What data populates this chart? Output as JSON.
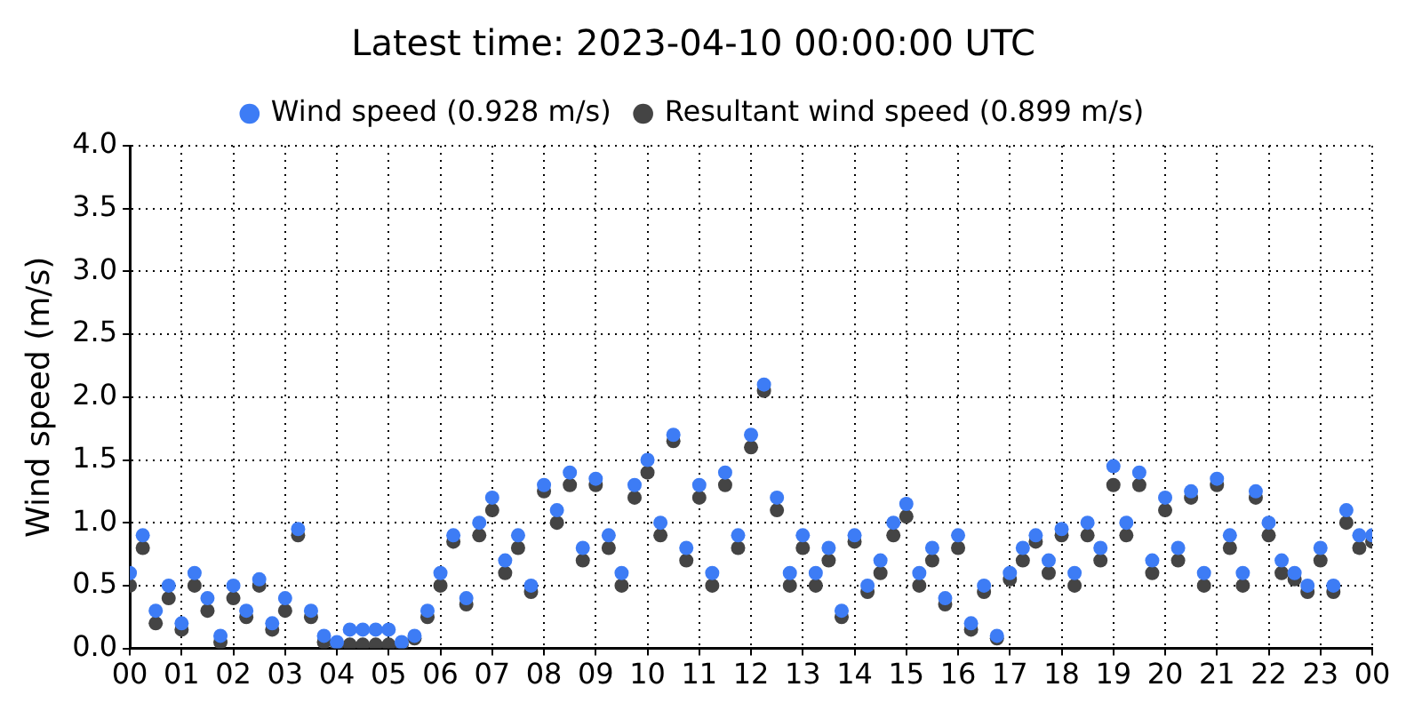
{
  "chart_data": {
    "type": "scatter",
    "title": "Latest time: 2023-04-10 00:00:00 UTC",
    "ylabel": "Wind speed (m/s)",
    "x": [
      0,
      0.25,
      0.5,
      0.75,
      1,
      1.25,
      1.5,
      1.75,
      2,
      2.25,
      2.5,
      2.75,
      3,
      3.25,
      3.5,
      3.75,
      4,
      4.25,
      4.5,
      4.75,
      5,
      5.25,
      5.5,
      5.75,
      6,
      6.25,
      6.5,
      6.75,
      7,
      7.25,
      7.5,
      7.75,
      8,
      8.25,
      8.5,
      8.75,
      9,
      9.25,
      9.5,
      9.75,
      10,
      10.25,
      10.5,
      10.75,
      11,
      11.25,
      11.5,
      11.75,
      12,
      12.25,
      12.5,
      12.75,
      13,
      13.25,
      13.5,
      13.75,
      14,
      14.25,
      14.5,
      14.75,
      15,
      15.25,
      15.5,
      15.75,
      16,
      16.25,
      16.5,
      16.75,
      17,
      17.25,
      17.5,
      17.75,
      18,
      18.25,
      18.5,
      18.75,
      19,
      19.25,
      19.5,
      19.75,
      20,
      20.25,
      20.5,
      20.75,
      21,
      21.25,
      21.5,
      21.75,
      22,
      22.25,
      22.5,
      22.75,
      23,
      23.25,
      23.5,
      23.75,
      24
    ],
    "series": [
      {
        "name": "Wind speed (0.928 m/s)",
        "color": "#3d7cf5",
        "values": [
          0.6,
          0.9,
          0.3,
          0.5,
          0.2,
          0.6,
          0.4,
          0.1,
          0.5,
          0.3,
          0.55,
          0.2,
          0.4,
          0.95,
          0.3,
          0.1,
          0.05,
          0.15,
          0.15,
          0.15,
          0.15,
          0.05,
          0.1,
          0.3,
          0.6,
          0.9,
          0.4,
          1.0,
          1.2,
          0.7,
          0.9,
          0.5,
          1.3,
          1.1,
          1.4,
          0.8,
          1.35,
          0.9,
          0.6,
          1.3,
          1.5,
          1.0,
          1.7,
          0.8,
          1.3,
          0.6,
          1.4,
          0.9,
          1.7,
          2.1,
          1.2,
          0.6,
          0.9,
          0.6,
          0.8,
          0.3,
          0.9,
          0.5,
          0.7,
          1.0,
          1.15,
          0.6,
          0.8,
          0.4,
          0.9,
          0.2,
          0.5,
          0.1,
          0.6,
          0.8,
          0.9,
          0.7,
          0.95,
          0.6,
          1.0,
          0.8,
          1.45,
          1.0,
          1.4,
          0.7,
          1.2,
          0.8,
          1.25,
          0.6,
          1.35,
          0.9,
          0.6,
          1.25,
          1.0,
          0.7,
          0.6,
          0.5,
          0.8,
          0.5,
          1.1,
          0.9,
          0.9
        ]
      },
      {
        "name": "Resultant wind speed (0.899 m/s)",
        "color": "#444444",
        "values": [
          0.5,
          0.8,
          0.2,
          0.4,
          0.15,
          0.5,
          0.3,
          0.05,
          0.4,
          0.25,
          0.5,
          0.15,
          0.3,
          0.9,
          0.25,
          0.05,
          0.03,
          0.03,
          0.03,
          0.03,
          0.03,
          0.03,
          0.08,
          0.25,
          0.5,
          0.85,
          0.35,
          0.9,
          1.1,
          0.6,
          0.8,
          0.45,
          1.25,
          1.0,
          1.3,
          0.7,
          1.3,
          0.8,
          0.5,
          1.2,
          1.4,
          0.9,
          1.65,
          0.7,
          1.2,
          0.5,
          1.3,
          0.8,
          1.6,
          2.05,
          1.1,
          0.5,
          0.8,
          0.5,
          0.7,
          0.25,
          0.85,
          0.45,
          0.6,
          0.9,
          1.05,
          0.5,
          0.7,
          0.35,
          0.8,
          0.15,
          0.45,
          0.08,
          0.55,
          0.7,
          0.85,
          0.6,
          0.9,
          0.5,
          0.9,
          0.7,
          1.3,
          0.9,
          1.3,
          0.6,
          1.1,
          0.7,
          1.2,
          0.5,
          1.3,
          0.8,
          0.5,
          1.2,
          0.9,
          0.6,
          0.55,
          0.45,
          0.7,
          0.45,
          1.0,
          0.8,
          0.85
        ]
      }
    ],
    "xlim": [
      0,
      24
    ],
    "xticks": [
      {
        "value": 0,
        "label": "00"
      },
      {
        "value": 1,
        "label": "01"
      },
      {
        "value": 2,
        "label": "02"
      },
      {
        "value": 3,
        "label": "03"
      },
      {
        "value": 4,
        "label": "04"
      },
      {
        "value": 5,
        "label": "05"
      },
      {
        "value": 6,
        "label": "06"
      },
      {
        "value": 7,
        "label": "07"
      },
      {
        "value": 8,
        "label": "08"
      },
      {
        "value": 9,
        "label": "09"
      },
      {
        "value": 10,
        "label": "10"
      },
      {
        "value": 11,
        "label": "11"
      },
      {
        "value": 12,
        "label": "12"
      },
      {
        "value": 13,
        "label": "13"
      },
      {
        "value": 14,
        "label": "14"
      },
      {
        "value": 15,
        "label": "15"
      },
      {
        "value": 16,
        "label": "16"
      },
      {
        "value": 17,
        "label": "17"
      },
      {
        "value": 18,
        "label": "18"
      },
      {
        "value": 19,
        "label": "19"
      },
      {
        "value": 20,
        "label": "20"
      },
      {
        "value": 21,
        "label": "21"
      },
      {
        "value": 22,
        "label": "22"
      },
      {
        "value": 23,
        "label": "23"
      },
      {
        "value": 24,
        "label": "00"
      }
    ],
    "ylim": [
      0,
      4
    ],
    "yticks": [
      {
        "value": 0,
        "label": "0.0"
      },
      {
        "value": 0.5,
        "label": "0.5"
      },
      {
        "value": 1,
        "label": "1.0"
      },
      {
        "value": 1.5,
        "label": "1.5"
      },
      {
        "value": 2,
        "label": "2.0"
      },
      {
        "value": 2.5,
        "label": "2.5"
      },
      {
        "value": 3,
        "label": "3.0"
      },
      {
        "value": 3.5,
        "label": "3.5"
      },
      {
        "value": 4,
        "label": "4.0"
      }
    ],
    "grid": true,
    "legend": "top",
    "marker": "circle"
  }
}
